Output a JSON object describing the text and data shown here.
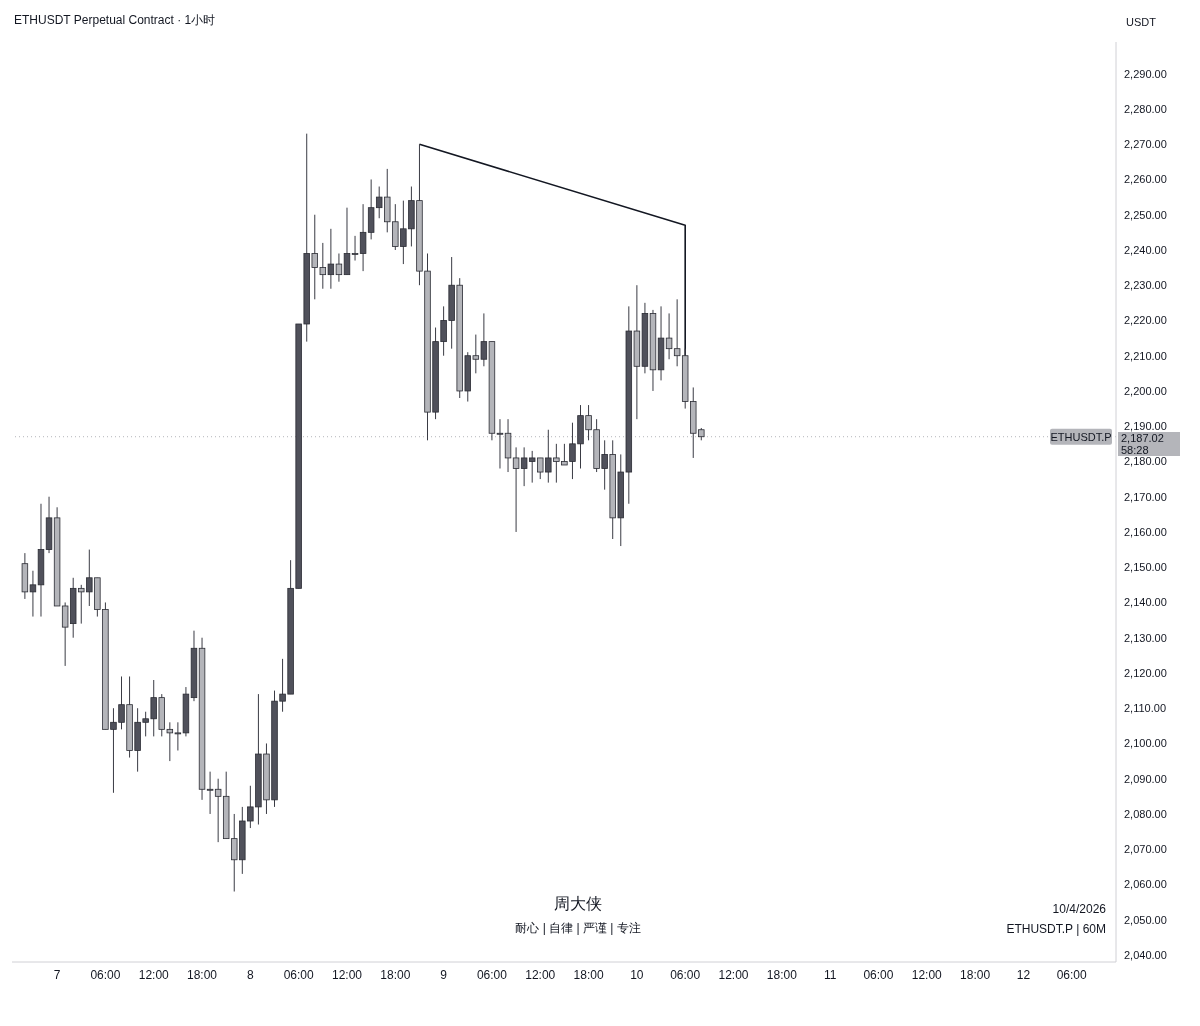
{
  "chart_data": {
    "type": "candlestick",
    "title": "ETHUSDT Perpetual Contract · 1小时",
    "ylabel": "USDT",
    "x": [
      "2026-04-06T20:00",
      "2026-04-06T21:00",
      "2026-04-06T22:00",
      "2026-04-06T23:00",
      "2026-04-07T00:00",
      "2026-04-07T01:00",
      "2026-04-07T02:00",
      "2026-04-07T03:00",
      "2026-04-07T04:00",
      "2026-04-07T05:00",
      "2026-04-07T06:00",
      "2026-04-07T07:00",
      "2026-04-07T08:00",
      "2026-04-07T09:00",
      "2026-04-07T10:00",
      "2026-04-07T11:00",
      "2026-04-07T12:00",
      "2026-04-07T13:00",
      "2026-04-07T14:00",
      "2026-04-07T15:00",
      "2026-04-07T16:00",
      "2026-04-07T17:00",
      "2026-04-07T18:00",
      "2026-04-07T19:00",
      "2026-04-07T20:00",
      "2026-04-07T21:00",
      "2026-04-07T22:00",
      "2026-04-07T23:00",
      "2026-04-08T00:00",
      "2026-04-08T01:00",
      "2026-04-08T02:00",
      "2026-04-08T03:00",
      "2026-04-08T04:00",
      "2026-04-08T05:00",
      "2026-04-08T06:00",
      "2026-04-08T07:00",
      "2026-04-08T08:00",
      "2026-04-08T09:00",
      "2026-04-08T10:00",
      "2026-04-08T11:00",
      "2026-04-08T12:00",
      "2026-04-08T13:00",
      "2026-04-08T14:00",
      "2026-04-08T15:00",
      "2026-04-08T16:00",
      "2026-04-08T17:00",
      "2026-04-08T18:00",
      "2026-04-08T19:00",
      "2026-04-08T20:00",
      "2026-04-08T21:00",
      "2026-04-08T22:00",
      "2026-04-08T23:00",
      "2026-04-09T00:00",
      "2026-04-09T01:00",
      "2026-04-09T02:00",
      "2026-04-09T03:00",
      "2026-04-09T04:00",
      "2026-04-09T05:00",
      "2026-04-09T06:00",
      "2026-04-09T07:00",
      "2026-04-09T08:00",
      "2026-04-09T09:00",
      "2026-04-09T10:00",
      "2026-04-09T11:00",
      "2026-04-09T12:00",
      "2026-04-09T13:00",
      "2026-04-09T14:00",
      "2026-04-09T15:00",
      "2026-04-09T16:00",
      "2026-04-09T17:00",
      "2026-04-09T18:00",
      "2026-04-09T19:00",
      "2026-04-09T20:00",
      "2026-04-09T21:00",
      "2026-04-09T22:00",
      "2026-04-09T23:00",
      "2026-04-10T00:00",
      "2026-04-10T01:00",
      "2026-04-10T02:00",
      "2026-04-10T03:00",
      "2026-04-10T04:00",
      "2026-04-10T05:00",
      "2026-04-10T06:00",
      "2026-04-10T07:00",
      "2026-04-10T08:00"
    ],
    "ohlc": [
      [
        2151,
        2154,
        2141,
        2143
      ],
      [
        2143,
        2149,
        2136,
        2145
      ],
      [
        2145,
        2168,
        2136,
        2155
      ],
      [
        2155,
        2170,
        2154,
        2164
      ],
      [
        2164,
        2167,
        2139,
        2139
      ],
      [
        2139,
        2140,
        2122,
        2133
      ],
      [
        2134,
        2147,
        2130,
        2144
      ],
      [
        2144,
        2145,
        2134,
        2143
      ],
      [
        2143,
        2155,
        2139,
        2147
      ],
      [
        2147,
        2147,
        2136,
        2138
      ],
      [
        2138,
        2140,
        2104,
        2104
      ],
      [
        2104,
        2110,
        2086,
        2106
      ],
      [
        2106,
        2119,
        2104,
        2111
      ],
      [
        2111,
        2119,
        2096,
        2098
      ],
      [
        2098,
        2110,
        2092,
        2106
      ],
      [
        2106,
        2109,
        2102,
        2107
      ],
      [
        2107,
        2118,
        2102,
        2113
      ],
      [
        2113,
        2114,
        2102,
        2104
      ],
      [
        2104,
        2106,
        2095,
        2103
      ],
      [
        2103,
        2106,
        2098,
        2103
      ],
      [
        2103,
        2116,
        2102,
        2114
      ],
      [
        2113,
        2132,
        2112,
        2127
      ],
      [
        2127,
        2130,
        2084,
        2087
      ],
      [
        2087,
        2092,
        2080,
        2087
      ],
      [
        2087,
        2090,
        2072,
        2085
      ],
      [
        2085,
        2092,
        2073,
        2073
      ],
      [
        2073,
        2080,
        2058,
        2067
      ],
      [
        2067,
        2082,
        2063,
        2078
      ],
      [
        2078,
        2088,
        2076,
        2082
      ],
      [
        2082,
        2114,
        2077,
        2097
      ],
      [
        2097,
        2100,
        2080,
        2084
      ],
      [
        2084,
        2115,
        2082,
        2112
      ],
      [
        2112,
        2124,
        2109,
        2114
      ],
      [
        2114,
        2152,
        2114,
        2144
      ],
      [
        2144,
        2219,
        2144,
        2219
      ],
      [
        2219,
        2273,
        2214,
        2239
      ],
      [
        2239,
        2250,
        2226,
        2235
      ],
      [
        2235,
        2242,
        2229,
        2233
      ],
      [
        2233,
        2246,
        2229,
        2236
      ],
      [
        2236,
        2239,
        2231,
        2233
      ],
      [
        2233,
        2252,
        2233,
        2239
      ],
      [
        2239,
        2244,
        2237,
        2239
      ],
      [
        2239,
        2253,
        2234,
        2245
      ],
      [
        2245,
        2260,
        2243,
        2252
      ],
      [
        2252,
        2258,
        2249,
        2255
      ],
      [
        2255,
        2263,
        2245,
        2248
      ],
      [
        2248,
        2253,
        2240,
        2241
      ],
      [
        2241,
        2254,
        2236,
        2246
      ],
      [
        2246,
        2258,
        2241,
        2254
      ],
      [
        2254,
        2270,
        2230,
        2234
      ],
      [
        2234,
        2239,
        2186,
        2194
      ],
      [
        2194,
        2218,
        2192,
        2214
      ],
      [
        2214,
        2224,
        2210,
        2220
      ],
      [
        2220,
        2238,
        2212,
        2230
      ],
      [
        2230,
        2232,
        2198,
        2200
      ],
      [
        2200,
        2211,
        2197,
        2210
      ],
      [
        2210,
        2216,
        2205,
        2209
      ],
      [
        2209,
        2222,
        2207,
        2214
      ],
      [
        2214,
        2214,
        2186,
        2188
      ],
      [
        2188,
        2192,
        2178,
        2188
      ],
      [
        2188,
        2192,
        2177,
        2181
      ],
      [
        2181,
        2184,
        2160,
        2178
      ],
      [
        2178,
        2184,
        2173,
        2181
      ],
      [
        2180,
        2183,
        2174,
        2181
      ],
      [
        2181,
        2181,
        2175,
        2177
      ],
      [
        2177,
        2189,
        2174,
        2181
      ],
      [
        2181,
        2185,
        2174,
        2180
      ],
      [
        2180,
        2185,
        2179,
        2179
      ],
      [
        2180,
        2191,
        2175,
        2185
      ],
      [
        2185,
        2196,
        2178,
        2193
      ],
      [
        2193,
        2196,
        2186,
        2189
      ],
      [
        2189,
        2192,
        2177,
        2178
      ],
      [
        2178,
        2186,
        2172,
        2182
      ],
      [
        2182,
        2186,
        2158,
        2164
      ],
      [
        2164,
        2182,
        2156,
        2177
      ],
      [
        2177,
        2224,
        2168,
        2217
      ],
      [
        2217,
        2230,
        2192,
        2207
      ],
      [
        2207,
        2225,
        2205,
        2222
      ],
      [
        2222,
        2223,
        2200,
        2206
      ],
      [
        2206,
        2224,
        2203,
        2215
      ],
      [
        2215,
        2222,
        2209,
        2212
      ],
      [
        2212,
        2226,
        2207,
        2210
      ],
      [
        2210,
        2212,
        2195,
        2197
      ],
      [
        2197,
        2201,
        2181,
        2188
      ],
      [
        2189,
        2189.5,
        2186,
        2187.02
      ]
    ],
    "colors": [
      "#b4b5ba",
      "#50515b",
      "#50515b",
      "#50515b",
      "#b4b5ba",
      "#b4b5ba",
      "#50515b",
      "#b4b5ba",
      "#50515b",
      "#b4b5ba",
      "#b4b5ba",
      "#50515b",
      "#50515b",
      "#b4b5ba",
      "#50515b",
      "#50515b",
      "#50515b",
      "#b4b5ba",
      "#b4b5ba",
      "#b4b5ba",
      "#50515b",
      "#50515b",
      "#b4b5ba",
      "#b4b5ba",
      "#b4b5ba",
      "#b4b5ba",
      "#b4b5ba",
      "#50515b",
      "#50515b",
      "#50515b",
      "#b4b5ba",
      "#50515b",
      "#50515b",
      "#50515b",
      "#50515b",
      "#50515b",
      "#b4b5ba",
      "#b4b5ba",
      "#50515b",
      "#b4b5ba",
      "#50515b",
      "#b4b5ba",
      "#50515b",
      "#50515b",
      "#50515b",
      "#b4b5ba",
      "#b4b5ba",
      "#50515b",
      "#50515b",
      "#b4b5ba",
      "#b4b5ba",
      "#50515b",
      "#50515b",
      "#50515b",
      "#b4b5ba",
      "#50515b",
      "#b4b5ba",
      "#50515b",
      "#b4b5ba",
      "#b4b5ba",
      "#b4b5ba",
      "#b4b5ba",
      "#50515b",
      "#50515b",
      "#b4b5ba",
      "#50515b",
      "#b4b5ba",
      "#b4b5ba",
      "#50515b",
      "#50515b",
      "#b4b5ba",
      "#b4b5ba",
      "#50515b",
      "#b4b5ba",
      "#50515b",
      "#50515b",
      "#b4b5ba",
      "#50515b",
      "#b4b5ba",
      "#50515b",
      "#b4b5ba",
      "#b4b5ba",
      "#b4b5ba",
      "#b4b5ba",
      "#b4b5ba"
    ],
    "series": [
      {
        "type": "line",
        "color": "#131722",
        "x": [
          "2026-04-08T21:00",
          "2026-04-10T06:00",
          "2026-04-10T06:00"
        ],
        "values": [
          2270,
          2247,
          2210
        ]
      }
    ],
    "xlim": [
      "2026-04-06T18:24",
      "2026-04-12T11:30"
    ],
    "xticks": [
      {
        "value": "2026-04-07T00:00",
        "label": "7"
      },
      {
        "value": "2026-04-07T06:00",
        "label": "06:00"
      },
      {
        "value": "2026-04-07T12:00",
        "label": "12:00"
      },
      {
        "value": "2026-04-07T18:00",
        "label": "18:00"
      },
      {
        "value": "2026-04-08T00:00",
        "label": "8"
      },
      {
        "value": "2026-04-08T06:00",
        "label": "06:00"
      },
      {
        "value": "2026-04-08T12:00",
        "label": "12:00"
      },
      {
        "value": "2026-04-08T18:00",
        "label": "18:00"
      },
      {
        "value": "2026-04-09T00:00",
        "label": "9"
      },
      {
        "value": "2026-04-09T06:00",
        "label": "06:00"
      },
      {
        "value": "2026-04-09T12:00",
        "label": "12:00"
      },
      {
        "value": "2026-04-09T18:00",
        "label": "18:00"
      },
      {
        "value": "2026-04-10T00:00",
        "label": "10"
      },
      {
        "value": "2026-04-10T06:00",
        "label": "06:00"
      },
      {
        "value": "2026-04-10T12:00",
        "label": "12:00"
      },
      {
        "value": "2026-04-10T18:00",
        "label": "18:00"
      },
      {
        "value": "2026-04-11T00:00",
        "label": "11"
      },
      {
        "value": "2026-04-11T06:00",
        "label": "06:00"
      },
      {
        "value": "2026-04-11T12:00",
        "label": "12:00"
      },
      {
        "value": "2026-04-11T18:00",
        "label": "18:00"
      },
      {
        "value": "2026-04-12T00:00",
        "label": "12"
      },
      {
        "value": "2026-04-12T06:00",
        "label": "06:00"
      }
    ],
    "ylim": [
      2038,
      2299
    ],
    "yticks": [
      {
        "value": 2040,
        "label": "2,040.00"
      },
      {
        "value": 2050,
        "label": "2,050.00"
      },
      {
        "value": 2060,
        "label": "2,060.00"
      },
      {
        "value": 2070,
        "label": "2,070.00"
      },
      {
        "value": 2080,
        "label": "2,080.00"
      },
      {
        "value": 2090,
        "label": "2,090.00"
      },
      {
        "value": 2100,
        "label": "2,100.00"
      },
      {
        "value": 2110,
        "label": "2,110.00"
      },
      {
        "value": 2120,
        "label": "2,120.00"
      },
      {
        "value": 2130,
        "label": "2,130.00"
      },
      {
        "value": 2140,
        "label": "2,140.00"
      },
      {
        "value": 2150,
        "label": "2,150.00"
      },
      {
        "value": 2160,
        "label": "2,160.00"
      },
      {
        "value": 2170,
        "label": "2,170.00"
      },
      {
        "value": 2180,
        "label": "2,180.00"
      },
      {
        "value": 2190,
        "label": "2,190.00"
      },
      {
        "value": 2200,
        "label": "2,200.00"
      },
      {
        "value": 2210,
        "label": "2,210.00"
      },
      {
        "value": 2220,
        "label": "2,220.00"
      },
      {
        "value": 2230,
        "label": "2,230.00"
      },
      {
        "value": 2240,
        "label": "2,240.00"
      },
      {
        "value": 2250,
        "label": "2,250.00"
      },
      {
        "value": 2260,
        "label": "2,260.00"
      },
      {
        "value": 2270,
        "label": "2,270.00"
      },
      {
        "value": 2280,
        "label": "2,280.00"
      },
      {
        "value": 2290,
        "label": "2,290.00"
      }
    ],
    "ref_lines": [
      {
        "axis": "y",
        "value": 2187.02,
        "label": "ETHUSDT.P",
        "color": "#b4b5ba",
        "line_style": "dotted"
      }
    ],
    "annotations": [
      "2,187.02",
      "58:28",
      "周大侠",
      "耐心 | 自律 | 严谨 | 专注",
      "10/4/2026",
      "ETHUSDT.P | 60M"
    ],
    "grid": false
  }
}
